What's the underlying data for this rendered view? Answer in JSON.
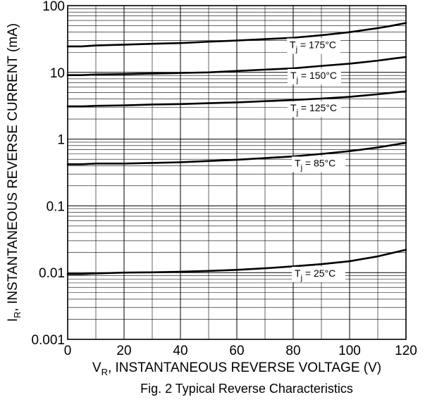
{
  "chart_data": {
    "type": "line",
    "caption": "Fig. 2 Typical Reverse Characteristics",
    "xlabel": {
      "main": "V",
      "sub": "R",
      "rest": ", INSTANTANEOUS REVERSE VOLTAGE (V)"
    },
    "ylabel": {
      "main": "I",
      "sub": "R",
      "rest": ", INSTANTANEOUS REVERSE CURRENT (mA)"
    },
    "x_scale": "linear",
    "y_scale": "log",
    "xlim": [
      0,
      120
    ],
    "ylim": [
      0.001,
      100
    ],
    "x_ticks": [
      0,
      20,
      40,
      60,
      80,
      100,
      120
    ],
    "x_tick_labels": [
      "0",
      "20",
      "40",
      "60",
      "80",
      "100",
      "120"
    ],
    "y_ticks": [
      0.001,
      0.01,
      0.1,
      1,
      10,
      100
    ],
    "y_tick_labels": [
      "0.001",
      "0.01",
      "0.1",
      "1",
      "10",
      "100"
    ],
    "grid": true,
    "legend": "none",
    "series": [
      {
        "name": "T_j = 175°C",
        "label": {
          "main": "T",
          "sub": "j",
          "rest": " = 175°C"
        },
        "x": [
          0,
          5,
          10,
          20,
          30,
          40,
          50,
          60,
          70,
          80,
          90,
          100,
          110,
          115,
          120
        ],
        "y": [
          24.5,
          24.5,
          25.3,
          26,
          26.8,
          27.5,
          28.8,
          30,
          31.5,
          33,
          36,
          40,
          46,
          50,
          55
        ]
      },
      {
        "name": "T_j = 150°C",
        "label": {
          "main": "T",
          "sub": "j",
          "rest": " = 150°C"
        },
        "x": [
          0,
          5,
          10,
          20,
          30,
          40,
          50,
          60,
          70,
          80,
          90,
          100,
          110,
          115,
          120
        ],
        "y": [
          9.1,
          9.1,
          9.3,
          9.4,
          9.6,
          9.8,
          10,
          10.5,
          11,
          11.5,
          12.5,
          13.5,
          15,
          16,
          17
        ]
      },
      {
        "name": "T_j = 125°C",
        "label": {
          "main": "T",
          "sub": "j",
          "rest": " = 125°C"
        },
        "x": [
          0,
          5,
          10,
          20,
          30,
          40,
          50,
          60,
          70,
          80,
          90,
          100,
          110,
          120
        ],
        "y": [
          3.1,
          3.1,
          3.15,
          3.2,
          3.3,
          3.35,
          3.45,
          3.55,
          3.7,
          3.85,
          4.05,
          4.3,
          4.7,
          5.2
        ]
      },
      {
        "name": "T_j = 85°C",
        "label": {
          "main": "T",
          "sub": "j",
          "rest": " = 85°C"
        },
        "x": [
          0,
          5,
          10,
          20,
          30,
          40,
          50,
          60,
          70,
          80,
          90,
          100,
          110,
          120
        ],
        "y": [
          0.42,
          0.42,
          0.43,
          0.43,
          0.44,
          0.45,
          0.47,
          0.49,
          0.52,
          0.55,
          0.6,
          0.66,
          0.75,
          0.88
        ]
      },
      {
        "name": "T_j = 25°C",
        "label": {
          "main": "T",
          "sub": "j",
          "rest": " = 25°C"
        },
        "x": [
          0,
          5,
          10,
          20,
          30,
          40,
          50,
          60,
          70,
          80,
          90,
          100,
          110,
          120
        ],
        "y": [
          0.0095,
          0.0095,
          0.0097,
          0.01,
          0.0101,
          0.0103,
          0.0106,
          0.011,
          0.0116,
          0.0124,
          0.0134,
          0.0148,
          0.0175,
          0.022
        ]
      }
    ]
  }
}
